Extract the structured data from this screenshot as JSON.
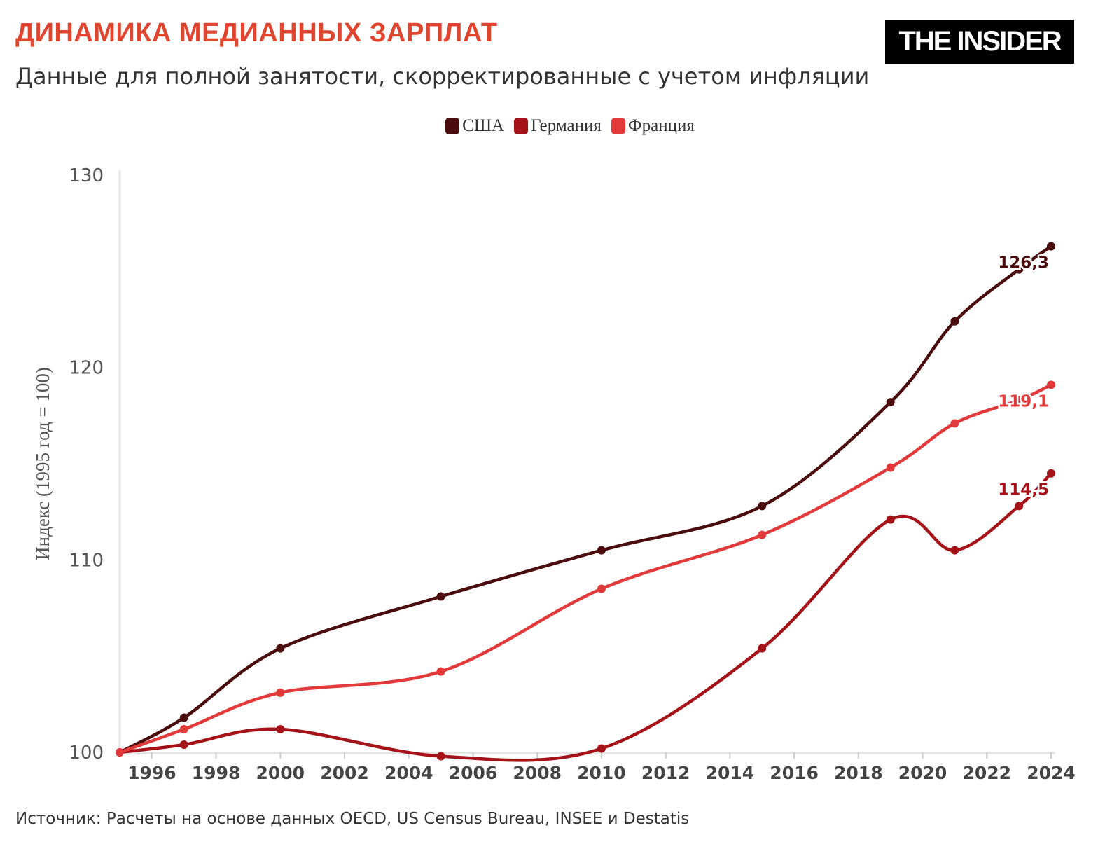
{
  "header": {
    "title": "ДИНАМИКА МЕДИАННЫХ ЗАРПЛАТ",
    "subtitle": "Данные для полной занятости, скорректированные с учетом инфляции",
    "logo": "THE INSIDER"
  },
  "source": "Источник: Расчеты на основе данных OECD, US Census Bureau, INSEE и Destatis",
  "chart_data": {
    "type": "line",
    "title": "ДИНАМИКА МЕДИАННЫХ ЗАРПЛАТ",
    "ylabel": "Индекс (1995 год = 100)",
    "xlabel": "",
    "xlim": [
      1995,
      2024
    ],
    "ylim": [
      100,
      130
    ],
    "yticks": [
      100,
      110,
      120,
      130
    ],
    "xticks": [
      1996,
      1998,
      2000,
      2002,
      2004,
      2006,
      2008,
      2010,
      2012,
      2014,
      2016,
      2018,
      2020,
      2022,
      2024
    ],
    "legend_position": "top-center",
    "series": [
      {
        "name": "США",
        "color": "#4a0c0c",
        "x": [
          1995,
          1997,
          2000,
          2005,
          2010,
          2015,
          2019,
          2021,
          2023,
          2024
        ],
        "values": [
          100,
          101.8,
          105.4,
          108.1,
          110.5,
          112.8,
          118.2,
          122.4,
          125.1,
          126.3
        ],
        "end_label": "126,3"
      },
      {
        "name": "Германия",
        "color": "#a51217",
        "x": [
          1995,
          1997,
          2000,
          2005,
          2010,
          2015,
          2019,
          2021,
          2023,
          2024
        ],
        "values": [
          100,
          100.4,
          101.2,
          99.8,
          100.2,
          105.4,
          112.1,
          110.5,
          112.8,
          114.5
        ],
        "end_label": "114,5"
      },
      {
        "name": "Франция",
        "color": "#e23a3a",
        "x": [
          1995,
          1997,
          2000,
          2005,
          2010,
          2015,
          2019,
          2021,
          2023,
          2024
        ],
        "values": [
          100,
          101.2,
          103.1,
          104.2,
          108.5,
          111.3,
          114.8,
          117.1,
          118.3,
          119.1
        ],
        "end_label": "119,1"
      }
    ]
  }
}
